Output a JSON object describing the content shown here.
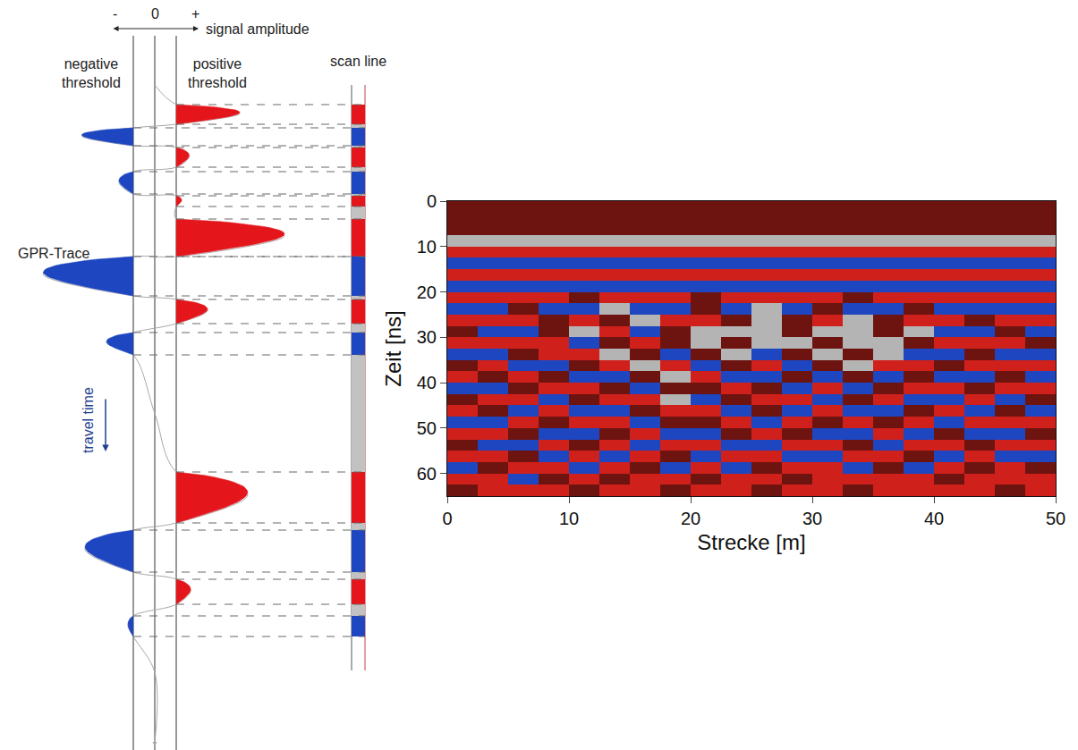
{
  "chart_data": {
    "type": "heatmap",
    "xlabel": "Strecke [m]",
    "ylabel": "Zeit [ns]",
    "xlim": [
      0,
      50
    ],
    "ylim": [
      65,
      0
    ],
    "xticks": [
      0,
      10,
      20,
      30,
      40,
      50
    ],
    "yticks": [
      0,
      10,
      20,
      30,
      40,
      50,
      60
    ],
    "zlim": [
      -1,
      1
    ],
    "x": [
      1.25,
      3.75,
      6.25,
      8.75,
      11.25,
      13.75,
      16.25,
      18.75,
      21.25,
      23.75,
      26.25,
      28.75,
      31.25,
      33.75,
      36.25,
      38.75,
      41.25,
      43.75,
      46.25,
      48.75
    ],
    "y": [
      1.25,
      3.75,
      6.25,
      8.75,
      11.25,
      13.75,
      16.25,
      18.75,
      21.25,
      23.75,
      26.25,
      28.75,
      31.25,
      33.75,
      36.25,
      38.75,
      41.25,
      43.75,
      46.25,
      48.75,
      51.25,
      53.75,
      56.25,
      58.75,
      61.25,
      63.75
    ],
    "z": [
      [
        0.5,
        0.5,
        0.5,
        0.5,
        0.5,
        0.5,
        0.5,
        0.5,
        0.5,
        0.5,
        0.5,
        0.5,
        0.5,
        0.5,
        0.5,
        0.5,
        0.5,
        0.5,
        0.5,
        0.5
      ],
      [
        0.5,
        0.5,
        0.5,
        0.5,
        0.5,
        0.5,
        0.5,
        0.5,
        0.5,
        0.5,
        0.5,
        0.5,
        0.5,
        0.5,
        0.5,
        0.5,
        0.5,
        0.5,
        0.5,
        0.5
      ],
      [
        0.5,
        0.5,
        0.5,
        0.5,
        0.5,
        0.5,
        0.5,
        0.5,
        0.5,
        0.5,
        0.5,
        0.5,
        0.5,
        0.5,
        0.5,
        0.5,
        0.5,
        0.5,
        0.5,
        0.5
      ],
      [
        0,
        0,
        0,
        0,
        0,
        0,
        0,
        0,
        0,
        0,
        0,
        0,
        0,
        0,
        0,
        0,
        0,
        0,
        0,
        0
      ],
      [
        1,
        1,
        1,
        1,
        1,
        1,
        1,
        1,
        1,
        1,
        1,
        1,
        1,
        1,
        1,
        1,
        1,
        1,
        1,
        1
      ],
      [
        -1,
        -1,
        -1,
        -1,
        -1,
        -1,
        -1,
        -1,
        -1,
        -1,
        -1,
        -1,
        -1,
        -1,
        -1,
        -1,
        -1,
        -1,
        -1,
        -1
      ],
      [
        1,
        1,
        1,
        1,
        1,
        1,
        1,
        1,
        1,
        1,
        1,
        1,
        1,
        1,
        1,
        1,
        1,
        1,
        1,
        1
      ],
      [
        -1,
        -1,
        -1,
        -1,
        -1,
        -1,
        -1,
        -1,
        -1,
        -1,
        -1,
        -1,
        -1,
        -1,
        -1,
        -1,
        -1,
        -1,
        -1,
        -1
      ],
      [
        1,
        1,
        1,
        1,
        0.5,
        1,
        1,
        1,
        0.5,
        1,
        1,
        1,
        1,
        0.5,
        1,
        1,
        1,
        1,
        1,
        1
      ],
      [
        -1,
        -1,
        0.5,
        -1,
        -1,
        0,
        -1,
        -1,
        0.5,
        -1,
        0,
        -1,
        0.5,
        -1,
        -1,
        0.5,
        -1,
        -1,
        -1,
        -1
      ],
      [
        1,
        1,
        1,
        0.5,
        1,
        0.5,
        0,
        1,
        1,
        0.5,
        0,
        0.5,
        1,
        0,
        0.5,
        1,
        1,
        0.5,
        1,
        1
      ],
      [
        0.5,
        -1,
        -1,
        0.5,
        0,
        1,
        -1,
        0.5,
        0,
        0,
        0,
        0.5,
        0,
        0,
        0.5,
        0,
        -1,
        -1,
        0.5,
        -1
      ],
      [
        1,
        1,
        1,
        1,
        -1,
        0.5,
        1,
        0.5,
        0,
        0.5,
        0,
        0,
        0.5,
        0,
        0,
        0.5,
        1,
        1,
        1,
        0.5
      ],
      [
        -1,
        -1,
        0.5,
        1,
        1,
        0,
        0.5,
        -1,
        0.5,
        0,
        -1,
        0.5,
        0,
        0.5,
        0,
        -1,
        -1,
        0.5,
        -1,
        -1
      ],
      [
        0.5,
        1,
        -1,
        -1,
        0.5,
        1,
        0,
        1,
        -1,
        0.5,
        1,
        -1,
        0.5,
        0,
        1,
        1,
        0.5,
        1,
        1,
        1
      ],
      [
        1,
        0.5,
        1,
        0.5,
        -1,
        -1,
        0.5,
        0,
        1,
        -1,
        -1,
        0.5,
        -1,
        0.5,
        -1,
        0.5,
        -1,
        -1,
        0.5,
        -1
      ],
      [
        -1,
        -1,
        0.5,
        1,
        1,
        0.5,
        -1,
        0.5,
        0.5,
        1,
        0.5,
        -1,
        1,
        -1,
        0.5,
        1,
        1,
        0.5,
        1,
        1
      ],
      [
        0.5,
        1,
        1,
        -1,
        0.5,
        1,
        1,
        0,
        -1,
        0.5,
        1,
        1,
        -1,
        0.5,
        1,
        -1,
        -1,
        1,
        -1,
        0.5
      ],
      [
        1,
        0.5,
        -1,
        1,
        -1,
        -1,
        0.5,
        1,
        1,
        -1,
        0.5,
        -1,
        1,
        -1,
        -1,
        0.5,
        1,
        -1,
        0.5,
        -1
      ],
      [
        -1,
        -1,
        1,
        0.5,
        1,
        1,
        -1,
        0.5,
        0.5,
        1,
        -1,
        1,
        0.5,
        1,
        0.5,
        1,
        -1,
        1,
        1,
        1
      ],
      [
        1,
        1,
        0.5,
        -1,
        -1,
        0.5,
        1,
        -1,
        -1,
        0.5,
        1,
        0.5,
        -1,
        -1,
        1,
        -1,
        0.5,
        -1,
        -1,
        0.5
      ],
      [
        0.5,
        -1,
        -1,
        1,
        0.5,
        1,
        -1,
        1,
        1,
        -1,
        -1,
        1,
        1,
        0.5,
        -1,
        1,
        1,
        0.5,
        1,
        1
      ],
      [
        1,
        1,
        0.5,
        -1,
        1,
        -1,
        1,
        0.5,
        -1,
        1,
        1,
        -1,
        -1,
        1,
        1,
        0.5,
        -1,
        1,
        -1,
        -1
      ],
      [
        -1,
        0.5,
        1,
        1,
        -1,
        1,
        0.5,
        -1,
        1,
        -1,
        0.5,
        1,
        1,
        -1,
        0.5,
        -1,
        1,
        0.5,
        1,
        0.5
      ],
      [
        1,
        1,
        -1,
        0.5,
        1,
        0.5,
        1,
        1,
        0.5,
        1,
        1,
        0.5,
        1,
        1,
        1,
        1,
        0.5,
        1,
        1,
        1
      ],
      [
        0.5,
        1,
        1,
        1,
        0.5,
        1,
        1,
        0.5,
        1,
        1,
        0.5,
        1,
        1,
        0.5,
        1,
        1,
        1,
        1,
        0.5,
        1
      ]
    ]
  },
  "diagram": {
    "axis_label": "signal amplitude",
    "amplitude_ticks": [
      "-",
      "0",
      "+"
    ],
    "negative_threshold_label": "negative threshold",
    "positive_threshold_label": "positive threshold",
    "scan_line_label": "scan line",
    "trace_label": "GPR-Trace",
    "time_label": "travel time",
    "threshold": 1,
    "lobes": [
      {
        "start": 117,
        "end": 139,
        "peak": 3.96
      },
      {
        "start": 143,
        "end": 163,
        "peak": -3.4
      },
      {
        "start": 165,
        "end": 187,
        "peak": 1.6
      },
      {
        "start": 192,
        "end": 217,
        "peak": -1.67
      },
      {
        "start": 219,
        "end": 231,
        "peak": 1.25
      },
      {
        "start": 245,
        "end": 287,
        "peak": 6.04
      },
      {
        "start": 287,
        "end": 331,
        "peak": -5.2
      },
      {
        "start": 335,
        "end": 362,
        "peak": 2.46
      },
      {
        "start": 372,
        "end": 397,
        "peak": -2.25
      },
      {
        "start": 528,
        "end": 585,
        "peak": 4.33
      },
      {
        "start": 593,
        "end": 640,
        "peak": -3.25
      },
      {
        "start": 648,
        "end": 676,
        "peak": 1.67
      },
      {
        "start": 689,
        "end": 712,
        "peak": -1.25
      }
    ]
  }
}
